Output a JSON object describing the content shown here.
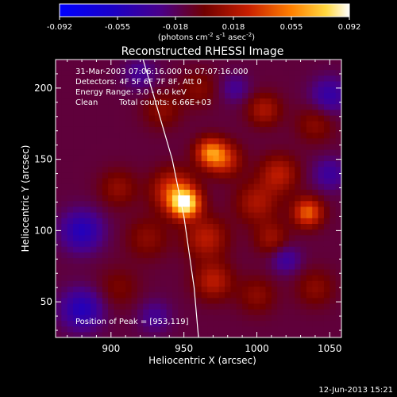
{
  "chart_data": {
    "type": "heatmap",
    "title": "Reconstructed RHESSI Image",
    "xlabel": "Heliocentric X (arcsec)",
    "ylabel": "Heliocentric Y (arcsec)",
    "xlim": [
      862,
      1058
    ],
    "ylim": [
      25,
      220
    ],
    "x_ticks": [
      900,
      950,
      1000,
      1050
    ],
    "y_ticks": [
      50,
      100,
      150,
      200
    ],
    "colorbar": {
      "range": [
        -0.092,
        0.092
      ],
      "ticks": [
        "-0.092",
        "-0.055",
        "-0.018",
        "0.018",
        "0.055",
        "0.092"
      ],
      "units_prefix": "(photons cm",
      "units_exp1": "-2",
      "units_mid": " s",
      "units_exp2": "-1",
      "units_mid2": " asec",
      "units_exp3": "-2",
      "units_suffix": ")"
    },
    "annotations": {
      "time_range": "31-Mar-2003 07:06:16.000 to 07:07:16.000",
      "detectors": "Detectors: 4F 5F 6F 7F 8F, Att 0",
      "energy_range": "Energy Range: 3.0 - 6.0 keV",
      "method": "Clean",
      "total_counts": "Total counts: 6.66E+03",
      "peak": "Position of Peak = [953,119]"
    },
    "peak": {
      "x": 953,
      "y": 119,
      "value": 0.092
    },
    "sources": [
      {
        "x": 951,
        "y": 119,
        "amp": 0.092,
        "sigma": 7
      },
      {
        "x": 943,
        "y": 128,
        "amp": 0.05,
        "sigma": 10
      },
      {
        "x": 968,
        "y": 155,
        "amp": 0.06,
        "sigma": 7
      },
      {
        "x": 978,
        "y": 150,
        "amp": 0.04,
        "sigma": 8
      },
      {
        "x": 1035,
        "y": 113,
        "amp": 0.058,
        "sigma": 7
      },
      {
        "x": 1015,
        "y": 140,
        "amp": 0.035,
        "sigma": 9
      },
      {
        "x": 1000,
        "y": 120,
        "amp": 0.03,
        "sigma": 10
      },
      {
        "x": 965,
        "y": 95,
        "amp": 0.035,
        "sigma": 10
      },
      {
        "x": 970,
        "y": 65,
        "amp": 0.035,
        "sigma": 9
      },
      {
        "x": 1010,
        "y": 95,
        "amp": 0.025,
        "sigma": 8
      },
      {
        "x": 925,
        "y": 95,
        "amp": 0.02,
        "sigma": 10
      },
      {
        "x": 905,
        "y": 130,
        "amp": 0.022,
        "sigma": 9
      },
      {
        "x": 935,
        "y": 185,
        "amp": 0.02,
        "sigma": 9
      },
      {
        "x": 1005,
        "y": 185,
        "amp": 0.03,
        "sigma": 8
      },
      {
        "x": 1040,
        "y": 175,
        "amp": 0.02,
        "sigma": 9
      },
      {
        "x": 960,
        "y": 200,
        "amp": 0.018,
        "sigma": 9
      },
      {
        "x": 905,
        "y": 60,
        "amp": 0.015,
        "sigma": 10
      },
      {
        "x": 1040,
        "y": 60,
        "amp": 0.02,
        "sigma": 9
      },
      {
        "x": 1000,
        "y": 55,
        "amp": 0.02,
        "sigma": 9
      },
      {
        "x": 880,
        "y": 100,
        "amp": -0.04,
        "sigma": 10
      },
      {
        "x": 880,
        "y": 45,
        "amp": -0.04,
        "sigma": 10
      },
      {
        "x": 1050,
        "y": 195,
        "amp": -0.03,
        "sigma": 9
      },
      {
        "x": 1050,
        "y": 140,
        "amp": -0.025,
        "sigma": 8
      },
      {
        "x": 1020,
        "y": 80,
        "amp": -0.025,
        "sigma": 7
      },
      {
        "x": 920,
        "y": 210,
        "amp": -0.02,
        "sigma": 8
      },
      {
        "x": 985,
        "y": 200,
        "amp": -0.02,
        "sigma": 7
      },
      {
        "x": 930,
        "y": 40,
        "amp": -0.02,
        "sigma": 8
      }
    ],
    "background": -0.012,
    "limb": {
      "x": [
        922,
        932,
        942,
        950,
        957,
        960
      ],
      "y": [
        220,
        185,
        150,
        110,
        60,
        25
      ]
    }
  },
  "footer": {
    "date": "12-Jun-2013 15:21"
  }
}
